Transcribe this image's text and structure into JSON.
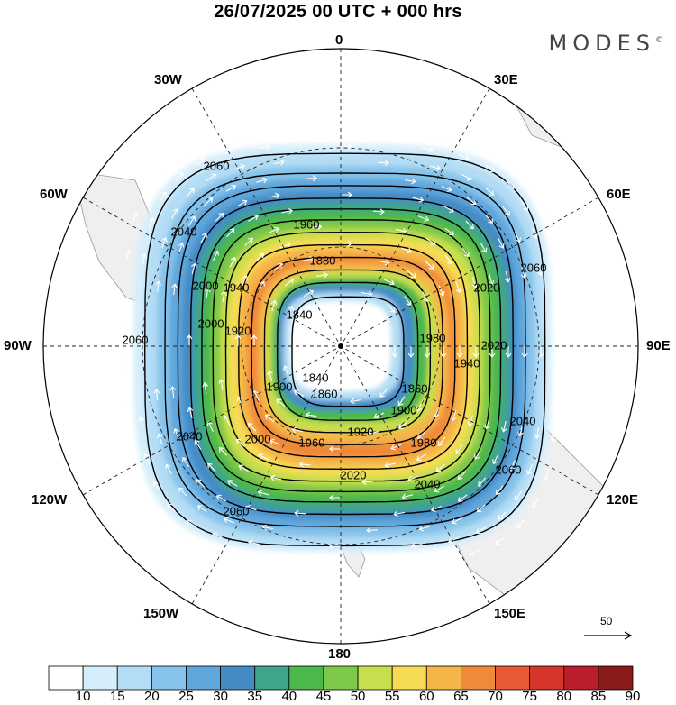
{
  "title": "26/07/2025  00 UTC  + 000 hrs",
  "logo": "MODES",
  "logo_mark": "©",
  "longitude_labels": {
    "lon_0": "0",
    "lon_30e": "30E",
    "lon_60e": "60E",
    "lon_90e": "90E",
    "lon_120e": "120E",
    "lon_150e": "150E",
    "lon_180": "180",
    "lon_150w": "150W",
    "lon_120w": "120W",
    "lon_90w": "90W",
    "lon_60w": "60W",
    "lon_30w": "30W"
  },
  "wind_speed_colorbar": {
    "levels": [
      "10",
      "15",
      "20",
      "25",
      "30",
      "35",
      "40",
      "45",
      "50",
      "55",
      "60",
      "65",
      "70",
      "75",
      "80",
      "85",
      "90"
    ],
    "colors": [
      "#ffffff",
      "#d6eefb",
      "#b3ddf5",
      "#86c3ea",
      "#5fa6dc",
      "#448bc6",
      "#3fa58a",
      "#4cb84c",
      "#7fc94a",
      "#c7de4d",
      "#f6dc55",
      "#f5b649",
      "#f08a3b",
      "#e85a33",
      "#d6352c",
      "#b91e2a",
      "#8b1a1a"
    ]
  },
  "geopotential_contours": [
    {
      "label": "1840"
    },
    {
      "label": "1860"
    },
    {
      "label": "1880"
    },
    {
      "label": "1900"
    },
    {
      "label": "1920"
    },
    {
      "label": "1940"
    },
    {
      "label": "1960"
    },
    {
      "label": "1980"
    },
    {
      "label": "2000"
    },
    {
      "label": "2020"
    },
    {
      "label": "2040"
    },
    {
      "label": "2060"
    }
  ],
  "reference_vector_label": "50"
}
